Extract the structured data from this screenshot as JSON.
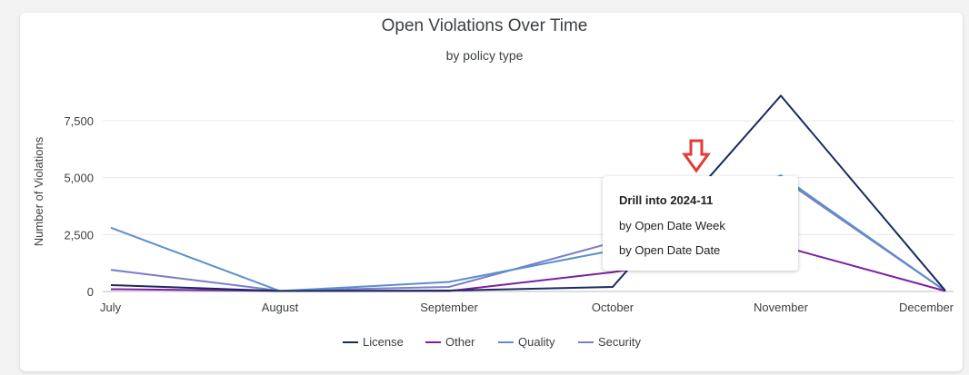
{
  "chart_data": {
    "type": "line",
    "title": "Open Violations Over Time",
    "subtitle": "by policy type",
    "xlabel": "",
    "ylabel": "Number of Violations",
    "categories": [
      "July",
      "August",
      "September",
      "October",
      "November",
      "December"
    ],
    "yticks": [
      "0",
      "2,500",
      "5,000",
      "7,500"
    ],
    "ytick_values": [
      0,
      2500,
      5000,
      7500
    ],
    "ylim": [
      0,
      8750
    ],
    "grid": true,
    "legend_position": "bottom",
    "series": [
      {
        "name": "License",
        "color": "#1a2a5e",
        "values": [
          280,
          20,
          40,
          200,
          8600,
          30
        ]
      },
      {
        "name": "Other",
        "color": "#7b1fa2",
        "values": [
          100,
          20,
          20,
          850,
          2000,
          20
        ]
      },
      {
        "name": "Quality",
        "color": "#5b8fcc",
        "values": [
          2800,
          20,
          420,
          1800,
          5100,
          20
        ]
      },
      {
        "name": "Security",
        "color": "#7b7fc8",
        "values": [
          950,
          30,
          200,
          2150,
          5000,
          20
        ]
      }
    ]
  },
  "tooltip": {
    "title": "Drill into 2024-11",
    "line1": "by Open Date Week",
    "line2": "by Open Date Date"
  },
  "drill_arrow": {
    "icon": "down-arrow-icon",
    "color": "#e53935"
  }
}
